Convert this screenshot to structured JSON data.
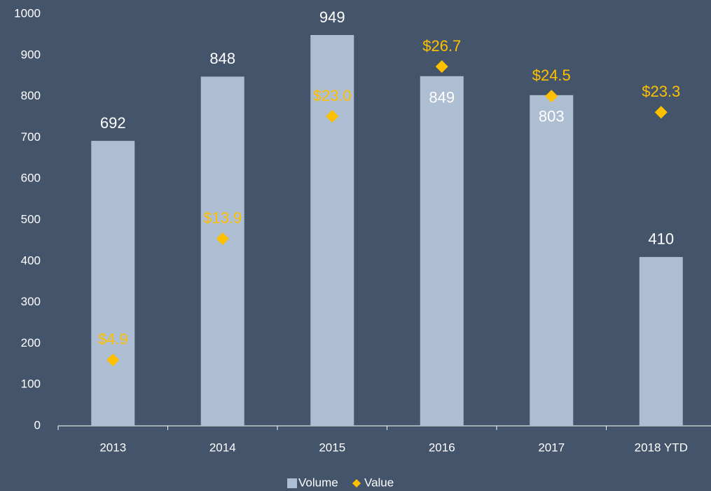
{
  "chart_data": {
    "type": "bar",
    "categories": [
      "2013",
      "2014",
      "2015",
      "2016",
      "2017",
      "2018 YTD"
    ],
    "series": [
      {
        "name": "Volume",
        "color": "#adbdd2",
        "values": [
          692,
          848,
          949,
          849,
          803,
          410
        ]
      },
      {
        "name": "Value",
        "color": "#ffc000",
        "axis": "y2",
        "values": [
          4.9,
          13.9,
          23.0,
          26.7,
          24.5,
          23.3
        ],
        "value_labels": [
          "$4.9",
          "$13.9",
          "$23.0",
          "$26.7",
          "$24.5",
          "$23.3"
        ]
      }
    ],
    "ylim": [
      0,
      1000
    ],
    "yticks": [
      0,
      100,
      200,
      300,
      400,
      500,
      600,
      700,
      800,
      900,
      1000
    ],
    "y2lim": [
      0,
      30.6
    ],
    "legend": "bottom"
  }
}
